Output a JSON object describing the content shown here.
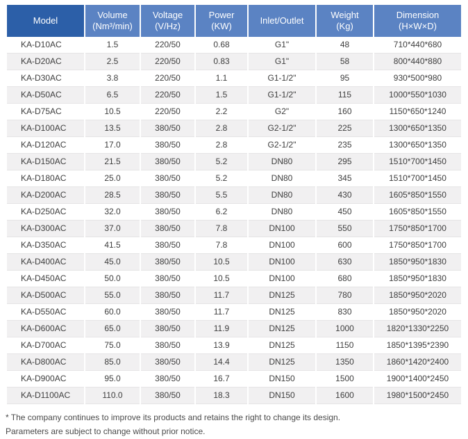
{
  "colors": {
    "header_dark": "#2c5fa8",
    "header_light": "#5b83c3",
    "stripe": "#f1f0f1",
    "hairline": "#e5e4e5",
    "text": "#3d3d3d",
    "header_text": "#ffffff"
  },
  "table": {
    "headers": [
      {
        "label": "Model",
        "sub": ""
      },
      {
        "label": "Volume",
        "sub": "(Nm³/min)"
      },
      {
        "label": "Voltage",
        "sub": "(V/Hz)"
      },
      {
        "label": "Power",
        "sub": "(KW)"
      },
      {
        "label": "Inlet/Outlet",
        "sub": ""
      },
      {
        "label": "Weight",
        "sub": "(Kg)"
      },
      {
        "label": "Dimension",
        "sub": "(H×W×D)"
      }
    ],
    "rows": [
      [
        "KA-D10AC",
        "1.5",
        "220/50",
        "0.68",
        "G1\"",
        "48",
        "710*440*680"
      ],
      [
        "KA-D20AC",
        "2.5",
        "220/50",
        "0.83",
        "G1\"",
        "58",
        "800*440*880"
      ],
      [
        "KA-D30AC",
        "3.8",
        "220/50",
        "1.1",
        "G1-1/2\"",
        "95",
        "930*500*980"
      ],
      [
        "KA-D50AC",
        "6.5",
        "220/50",
        "1.5",
        "G1-1/2\"",
        "115",
        "1000*550*1030"
      ],
      [
        "KA-D75AC",
        "10.5",
        "220/50",
        "2.2",
        "G2\"",
        "160",
        "1150*650*1240"
      ],
      [
        "KA-D100AC",
        "13.5",
        "380/50",
        "2.8",
        "G2-1/2\"",
        "225",
        "1300*650*1350"
      ],
      [
        "KA-D120AC",
        "17.0",
        "380/50",
        "2.8",
        "G2-1/2\"",
        "235",
        "1300*650*1350"
      ],
      [
        "KA-D150AC",
        "21.5",
        "380/50",
        "5.2",
        "DN80",
        "295",
        "1510*700*1450"
      ],
      [
        "KA-D180AC",
        "25.0",
        "380/50",
        "5.2",
        "DN80",
        "345",
        "1510*700*1450"
      ],
      [
        "KA-D200AC",
        "28.5",
        "380/50",
        "5.5",
        "DN80",
        "430",
        "1605*850*1550"
      ],
      [
        "KA-D250AC",
        "32.0",
        "380/50",
        "6.2",
        "DN80",
        "450",
        "1605*850*1550"
      ],
      [
        "KA-D300AC",
        "37.0",
        "380/50",
        "7.8",
        "DN100",
        "550",
        "1750*850*1700"
      ],
      [
        "KA-D350AC",
        "41.5",
        "380/50",
        "7.8",
        "DN100",
        "600",
        "1750*850*1700"
      ],
      [
        "KA-D400AC",
        "45.0",
        "380/50",
        "10.5",
        "DN100",
        "630",
        "1850*950*1830"
      ],
      [
        "KA-D450AC",
        "50.0",
        "380/50",
        "10.5",
        "DN100",
        "680",
        "1850*950*1830"
      ],
      [
        "KA-D500AC",
        "55.0",
        "380/50",
        "11.7",
        "DN125",
        "780",
        "1850*950*2020"
      ],
      [
        "KA-D550AC",
        "60.0",
        "380/50",
        "11.7",
        "DN125",
        "830",
        "1850*950*2020"
      ],
      [
        "KA-D600AC",
        "65.0",
        "380/50",
        "11.9",
        "DN125",
        "1000",
        "1820*1330*2250"
      ],
      [
        "KA-D700AC",
        "75.0",
        "380/50",
        "13.9",
        "DN125",
        "1150",
        "1850*1395*2390"
      ],
      [
        "KA-D800AC",
        "85.0",
        "380/50",
        "14.4",
        "DN125",
        "1350",
        "1860*1420*2400"
      ],
      [
        "KA-D900AC",
        "95.0",
        "380/50",
        "16.7",
        "DN150",
        "1500",
        "1900*1400*2450"
      ],
      [
        "KA-D1100AC",
        "110.0",
        "380/50",
        "18.3",
        "DN150",
        "1600",
        "1980*1500*2450"
      ]
    ]
  },
  "footnotes": {
    "line1": "* The company continues to improve its products and retains the right to change its design.",
    "line2": "Parameters are subject to change without prior notice."
  }
}
